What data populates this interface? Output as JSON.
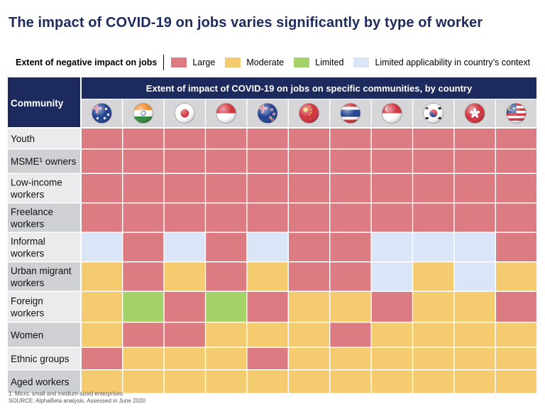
{
  "title": "The impact of COVID-19 on jobs varies significantly by type of worker",
  "legend": {
    "title": "Extent of negative impact on jobs",
    "items": [
      {
        "key": "L",
        "label": "Large",
        "color": "#dc7c82"
      },
      {
        "key": "M",
        "label": "Moderate",
        "color": "#f4cb6e"
      },
      {
        "key": "T",
        "label": "Limited",
        "color": "#a6d26a"
      },
      {
        "key": "N",
        "label": "Limited applicability in country’s context",
        "color": "#dae6f8"
      }
    ]
  },
  "footnotes": [
    "1. Micro, small and medium-sized enterprises",
    "SOURCE: AlphaBeta analysis. Assessed in June 2020"
  ],
  "chart_data": {
    "type": "heatmap",
    "row_header": "Community",
    "column_header": "Extent of impact of COVID-19 on jobs on specific communities, by country",
    "flag_icons": [
      "australia-flag-icon",
      "india-flag-icon",
      "japan-flag-icon",
      "indonesia-flag-icon",
      "new-zealand-flag-icon",
      "china-flag-icon",
      "thailand-flag-icon",
      "singapore-flag-icon",
      "south-korea-flag-icon",
      "hong-kong-flag-icon",
      "malaysia-flag-icon"
    ],
    "rows": [
      {
        "label": [
          "Youth"
        ],
        "values": [
          "L",
          "L",
          "L",
          "L",
          "L",
          "L",
          "L",
          "L",
          "L",
          "L",
          "L"
        ]
      },
      {
        "label": [
          "MSME¹ owners"
        ],
        "values": [
          "L",
          "L",
          "L",
          "L",
          "L",
          "L",
          "L",
          "L",
          "L",
          "L",
          "L"
        ]
      },
      {
        "label": [
          "Low-income",
          "workers"
        ],
        "values": [
          "L",
          "L",
          "L",
          "L",
          "L",
          "L",
          "L",
          "L",
          "L",
          "L",
          "L"
        ]
      },
      {
        "label": [
          "Freelance",
          "workers"
        ],
        "values": [
          "L",
          "L",
          "L",
          "L",
          "L",
          "L",
          "L",
          "L",
          "L",
          "L",
          "L"
        ]
      },
      {
        "label": [
          "Informal",
          "workers"
        ],
        "values": [
          "N",
          "L",
          "N",
          "L",
          "N",
          "L",
          "L",
          "N",
          "N",
          "N",
          "L"
        ]
      },
      {
        "label": [
          "Urban migrant",
          "workers"
        ],
        "values": [
          "M",
          "L",
          "M",
          "L",
          "M",
          "L",
          "L",
          "N",
          "M",
          "N",
          "M"
        ]
      },
      {
        "label": [
          "Foreign",
          "workers"
        ],
        "values": [
          "M",
          "T",
          "L",
          "T",
          "L",
          "M",
          "M",
          "L",
          "M",
          "M",
          "L"
        ]
      },
      {
        "label": [
          "Women"
        ],
        "values": [
          "M",
          "L",
          "L",
          "M",
          "M",
          "M",
          "L",
          "M",
          "M",
          "M",
          "M"
        ]
      },
      {
        "label": [
          "Ethnic groups"
        ],
        "values": [
          "L",
          "M",
          "M",
          "M",
          "L",
          "M",
          "M",
          "M",
          "M",
          "M",
          "M"
        ]
      },
      {
        "label": [
          "Aged workers"
        ],
        "values": [
          "M",
          "M",
          "M",
          "M",
          "M",
          "M",
          "M",
          "M",
          "M",
          "M",
          "M"
        ]
      }
    ]
  }
}
